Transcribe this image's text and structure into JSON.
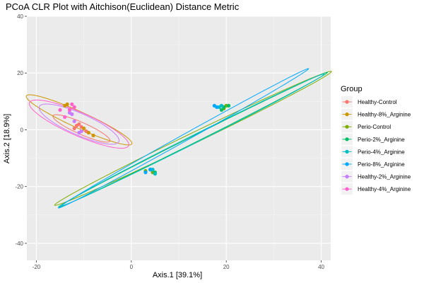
{
  "chart_data": {
    "type": "scatter",
    "title": "PCoA CLR Plot with Aitchison(Euclidean) Distance Metric",
    "xlabel": "Axis.1   [39.1%]",
    "ylabel": "Axis.2   [18.9%]",
    "xlim": [
      -22,
      42
    ],
    "ylim": [
      -46,
      40
    ],
    "x_ticks": [
      -20,
      0,
      20,
      40
    ],
    "x_tick_labels": [
      "-20",
      "0",
      "20",
      "40"
    ],
    "y_ticks": [
      -40,
      -20,
      0,
      20,
      40
    ],
    "y_tick_labels": [
      "-40",
      "-20",
      "0",
      "20",
      "40"
    ],
    "grid": true,
    "legend": {
      "title": "Group",
      "position": "right"
    },
    "series": [
      {
        "name": "Healthy-Control",
        "color": "#F8766D",
        "points": [
          [
            -11,
            2
          ],
          [
            -10.5,
            1
          ],
          [
            -9.5,
            -0.5
          ],
          [
            -12,
            0.5
          ],
          [
            -11.5,
            1.5
          ]
        ],
        "ellipse": {
          "cx": -10.5,
          "cy": 0.5,
          "rx": 7.5,
          "ry": 1.8,
          "angle": -38
        }
      },
      {
        "name": "Healthy-8%_Arginine",
        "color": "#CD9600",
        "points": [
          [
            -13.5,
            9
          ],
          [
            -14,
            8.5
          ],
          [
            -9,
            -1
          ],
          [
            -8,
            -2
          ],
          [
            -10,
            0.5
          ]
        ],
        "ellipse": {
          "cx": -11,
          "cy": 3.5,
          "rx": 14,
          "ry": 2.5,
          "angle": -38
        }
      },
      {
        "name": "Perio-Control",
        "color": "#7CAE00",
        "points": [
          [
            20,
            8.5
          ],
          [
            19.5,
            7.5
          ],
          [
            3,
            -14.5
          ],
          [
            4.5,
            -15
          ]
        ],
        "ellipse": {
          "cx": 13,
          "cy": -3,
          "rx": 37.5,
          "ry": 1.6,
          "angle": 39
        }
      },
      {
        "name": "Perio-2%_Arginine",
        "color": "#00BE67",
        "points": [
          [
            19.5,
            8
          ],
          [
            20.5,
            8.5
          ],
          [
            19,
            7
          ],
          [
            5,
            -15
          ],
          [
            4,
            -14
          ]
        ],
        "ellipse": {
          "cx": 13,
          "cy": -3.5,
          "rx": 37,
          "ry": 1.0,
          "angle": 40
        }
      },
      {
        "name": "Perio-4%_Arginine",
        "color": "#00BFC4",
        "points": [
          [
            18.5,
            8
          ],
          [
            19,
            8.5
          ],
          [
            4.5,
            -14
          ],
          [
            5,
            -15.5
          ]
        ],
        "ellipse": {
          "cx": 13,
          "cy": -3.5,
          "rx": 36,
          "ry": 1.2,
          "angle": 40
        }
      },
      {
        "name": "Perio-8%_Arginine",
        "color": "#00A9FF",
        "points": [
          [
            18,
            8
          ],
          [
            17.5,
            8.5
          ],
          [
            3,
            -15
          ],
          [
            4,
            -14
          ]
        ],
        "ellipse": {
          "cx": 11,
          "cy": -3,
          "rx": 36,
          "ry": 1.0,
          "angle": 43
        }
      },
      {
        "name": "Healthy-2%_Arginine",
        "color": "#C77CFF",
        "points": [
          [
            -13,
            6
          ],
          [
            -12.5,
            5.5
          ],
          [
            -11,
            -1
          ],
          [
            -10.5,
            -0.5
          ],
          [
            -12,
            3
          ]
        ],
        "ellipse": {
          "cx": -11,
          "cy": 2,
          "rx": 10.5,
          "ry": 3.3,
          "angle": -39
        }
      },
      {
        "name": "Healthy-4%_Arginine",
        "color": "#FF61CC",
        "points": [
          [
            -15,
            7
          ],
          [
            -14,
            4.5
          ],
          [
            -12.5,
            9
          ],
          [
            -13,
            7
          ],
          [
            -12,
            8
          ]
        ],
        "ellipse": {
          "cx": -11,
          "cy": 2,
          "rx": 13,
          "ry": 3.6,
          "angle": -38
        }
      }
    ]
  }
}
